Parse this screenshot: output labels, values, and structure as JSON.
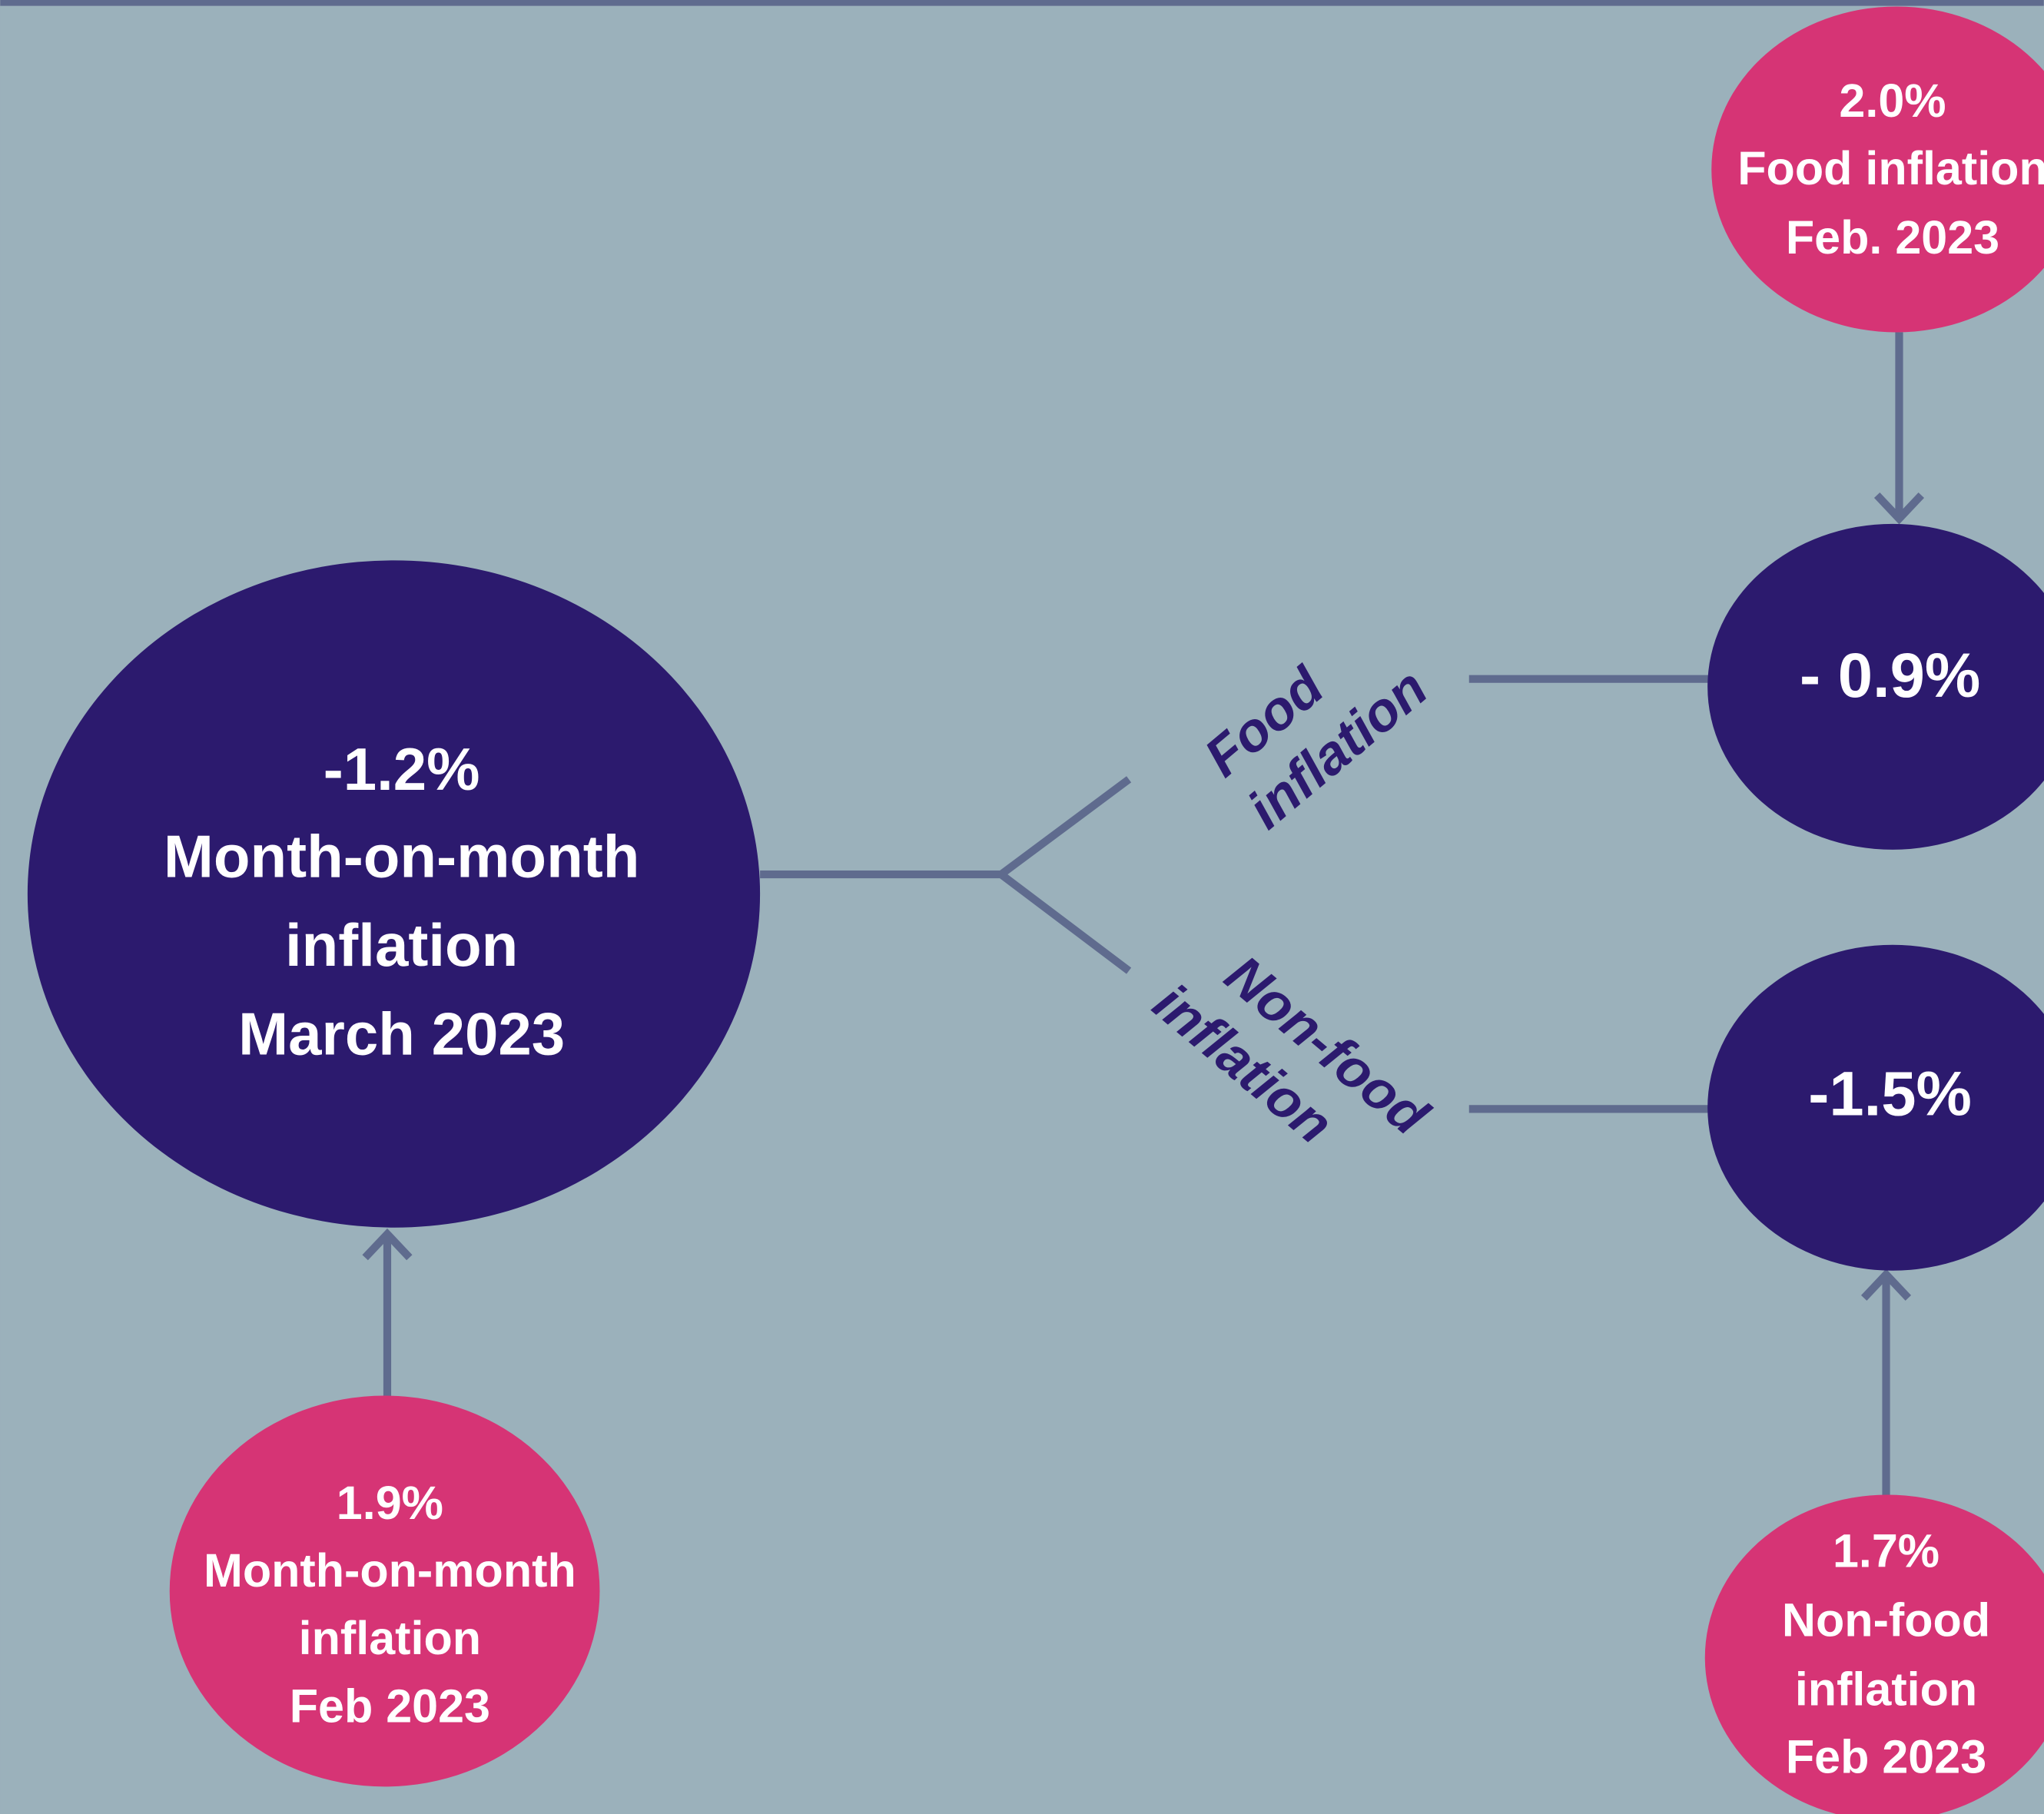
{
  "nodes": [
    {
      "value": "-1.2%",
      "lines": [
        "Month-on-month",
        "inflation",
        "March 2023"
      ]
    },
    {
      "value": "1.9%",
      "lines": [
        "Month-on-month",
        "inflation",
        "Feb 2023"
      ]
    },
    {
      "value": "- 0.9%",
      "lines": []
    },
    {
      "value": "2.0%",
      "lines": [
        "Food inflation",
        "Feb. 2023"
      ]
    },
    {
      "value": "-1.5%",
      "lines": []
    },
    {
      "value": "1.7%",
      "lines": [
        "Non-food",
        "inflation",
        "Feb 2023"
      ]
    }
  ],
  "branches": [
    {
      "lines": [
        "Food",
        "inflation"
      ]
    },
    {
      "lines": [
        "Non-food",
        "inflation"
      ]
    }
  ]
}
